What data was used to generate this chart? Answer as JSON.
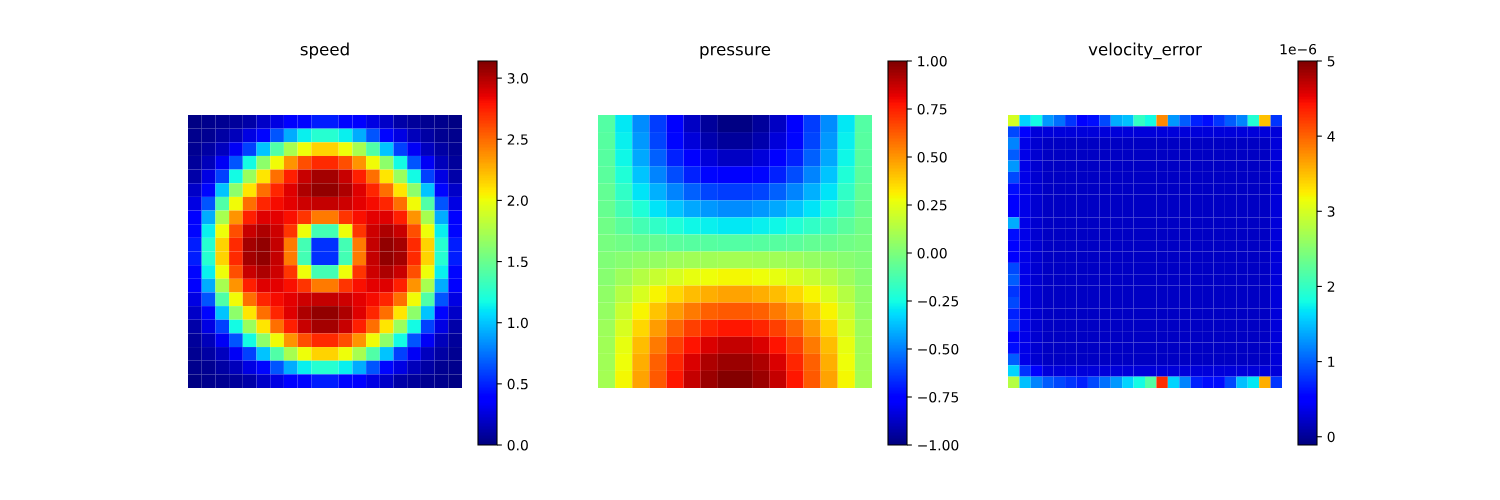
{
  "chart_data": [
    {
      "type": "heatmap",
      "title": "speed",
      "clim": [
        0,
        3.14
      ],
      "cticks": [
        {
          "value": 0,
          "label": "0.0"
        },
        {
          "value": 0.5,
          "label": "0.5"
        },
        {
          "value": 1,
          "label": "1.0"
        },
        {
          "value": 1.5,
          "label": "1.5"
        },
        {
          "value": 2,
          "label": "2.0"
        },
        {
          "value": 2.5,
          "label": "2.5"
        },
        {
          "value": 3,
          "label": "3.0"
        }
      ],
      "categories": [
        null,
        null,
        null,
        null,
        null,
        null,
        null,
        null,
        null,
        null,
        null,
        null,
        null,
        null,
        null,
        null,
        null,
        null,
        null,
        null
      ],
      "y_categories": [
        null,
        null,
        null,
        null,
        null,
        null,
        null,
        null,
        null,
        null,
        null,
        null,
        null,
        null,
        null,
        null,
        null,
        null,
        null,
        null
      ],
      "cells": [
        [
          0.02,
          0.04,
          0.06,
          0.08,
          0.12,
          0.2,
          0.27,
          0.35,
          0.41,
          0.48,
          0.48,
          0.41,
          0.35,
          0.27,
          0.2,
          0.12,
          0.08,
          0.06,
          0.04,
          0.02
        ],
        [
          0.04,
          0.06,
          0.1,
          0.16,
          0.27,
          0.41,
          0.66,
          0.93,
          1.13,
          1.24,
          1.24,
          1.13,
          0.93,
          0.66,
          0.41,
          0.27,
          0.16,
          0.1,
          0.06,
          0.04
        ],
        [
          0.06,
          0.1,
          0.18,
          0.32,
          0.6,
          1.0,
          1.4,
          1.73,
          2.0,
          2.15,
          2.15,
          2.0,
          1.73,
          1.4,
          1.0,
          0.6,
          0.32,
          0.18,
          0.1,
          0.06
        ],
        [
          0.08,
          0.16,
          0.32,
          0.66,
          1.17,
          1.64,
          2.02,
          2.36,
          2.59,
          2.72,
          2.72,
          2.59,
          2.36,
          2.02,
          1.64,
          1.17,
          0.66,
          0.32,
          0.16,
          0.08
        ],
        [
          0.12,
          0.27,
          0.6,
          1.17,
          1.69,
          2.09,
          2.48,
          2.75,
          2.94,
          3.04,
          3.04,
          2.94,
          2.75,
          2.48,
          2.09,
          1.69,
          1.17,
          0.6,
          0.27,
          0.12
        ],
        [
          0.2,
          0.41,
          1.0,
          1.64,
          2.09,
          2.48,
          2.73,
          2.88,
          3.01,
          3.09,
          3.09,
          3.01,
          2.88,
          2.73,
          2.48,
          2.09,
          1.64,
          1.0,
          0.41,
          0.2
        ],
        [
          0.27,
          0.66,
          1.4,
          2.02,
          2.48,
          2.73,
          2.81,
          2.87,
          2.92,
          2.95,
          2.95,
          2.92,
          2.87,
          2.81,
          2.73,
          2.48,
          2.02,
          1.4,
          0.66,
          0.27
        ],
        [
          0.35,
          0.93,
          1.73,
          2.36,
          2.75,
          2.88,
          2.87,
          2.8,
          2.68,
          2.45,
          2.45,
          2.68,
          2.8,
          2.87,
          2.88,
          2.75,
          2.36,
          1.73,
          0.93,
          0.35
        ],
        [
          0.41,
          1.13,
          2.0,
          2.59,
          2.94,
          3.01,
          2.92,
          2.68,
          2.0,
          1.35,
          1.35,
          2.0,
          2.68,
          2.92,
          3.01,
          2.94,
          2.59,
          2.0,
          1.13,
          0.41
        ],
        [
          0.48,
          1.24,
          2.15,
          2.72,
          3.04,
          3.09,
          2.95,
          2.45,
          1.35,
          0.55,
          0.55,
          1.35,
          2.45,
          2.95,
          3.09,
          3.04,
          2.72,
          2.15,
          1.24,
          0.48
        ],
        [
          0.48,
          1.24,
          2.15,
          2.72,
          3.04,
          3.09,
          2.95,
          2.45,
          1.35,
          0.55,
          0.55,
          1.35,
          2.45,
          2.95,
          3.09,
          3.04,
          2.72,
          2.15,
          1.24,
          0.48
        ],
        [
          0.41,
          1.13,
          2.0,
          2.59,
          2.94,
          3.01,
          2.92,
          2.68,
          2.0,
          1.35,
          1.35,
          2.0,
          2.68,
          2.92,
          3.01,
          2.94,
          2.59,
          2.0,
          1.13,
          0.41
        ],
        [
          0.35,
          0.93,
          1.73,
          2.36,
          2.75,
          2.88,
          2.87,
          2.8,
          2.68,
          2.45,
          2.45,
          2.68,
          2.8,
          2.87,
          2.88,
          2.75,
          2.36,
          1.73,
          0.93,
          0.35
        ],
        [
          0.27,
          0.66,
          1.4,
          2.02,
          2.48,
          2.73,
          2.81,
          2.87,
          2.92,
          2.95,
          2.95,
          2.92,
          2.87,
          2.81,
          2.73,
          2.48,
          2.02,
          1.4,
          0.66,
          0.27
        ],
        [
          0.2,
          0.41,
          1.0,
          1.64,
          2.09,
          2.48,
          2.73,
          2.88,
          3.01,
          3.09,
          3.09,
          3.01,
          2.88,
          2.73,
          2.48,
          2.09,
          1.64,
          1.0,
          0.41,
          0.2
        ],
        [
          0.12,
          0.27,
          0.6,
          1.17,
          1.69,
          2.09,
          2.48,
          2.75,
          2.94,
          3.04,
          3.04,
          2.94,
          2.75,
          2.48,
          2.09,
          1.69,
          1.17,
          0.6,
          0.27,
          0.12
        ],
        [
          0.08,
          0.16,
          0.32,
          0.66,
          1.17,
          1.64,
          2.02,
          2.36,
          2.59,
          2.72,
          2.72,
          2.59,
          2.36,
          2.02,
          1.64,
          1.17,
          0.66,
          0.32,
          0.16,
          0.08
        ],
        [
          0.06,
          0.1,
          0.18,
          0.32,
          0.6,
          1.0,
          1.4,
          1.73,
          2.0,
          2.15,
          2.15,
          2.0,
          1.73,
          1.4,
          1.0,
          0.6,
          0.32,
          0.18,
          0.1,
          0.06
        ],
        [
          0.04,
          0.06,
          0.1,
          0.16,
          0.27,
          0.41,
          0.66,
          0.93,
          1.13,
          1.24,
          1.24,
          1.13,
          0.93,
          0.66,
          0.41,
          0.27,
          0.16,
          0.1,
          0.06,
          0.04
        ],
        [
          0.02,
          0.04,
          0.06,
          0.08,
          0.12,
          0.2,
          0.27,
          0.35,
          0.41,
          0.48,
          0.48,
          0.41,
          0.35,
          0.27,
          0.2,
          0.12,
          0.08,
          0.06,
          0.04,
          0.02
        ]
      ]
    },
    {
      "type": "heatmap",
      "title": "pressure",
      "clim": [
        -1,
        1
      ],
      "cticks": [
        {
          "value": -1,
          "label": "−1.00"
        },
        {
          "value": -0.75,
          "label": "−0.75"
        },
        {
          "value": -0.5,
          "label": "−0.50"
        },
        {
          "value": -0.25,
          "label": "−0.25"
        },
        {
          "value": 0,
          "label": "0.00"
        },
        {
          "value": 0.25,
          "label": "0.25"
        },
        {
          "value": 0.5,
          "label": "0.50"
        },
        {
          "value": 0.75,
          "label": "0.75"
        },
        {
          "value": 1,
          "label": "1.00"
        }
      ],
      "categories": [
        null,
        null,
        null,
        null,
        null,
        null,
        null,
        null,
        null,
        null,
        null,
        null,
        null,
        null,
        null,
        null
      ],
      "y_categories": [
        null,
        null,
        null,
        null,
        null,
        null,
        null,
        null,
        null,
        null,
        null,
        null,
        null,
        null,
        null,
        null
      ],
      "cells": [
        [
          -0.1,
          -0.29,
          -0.47,
          -0.63,
          -0.77,
          -0.88,
          -0.95,
          -0.99,
          -0.99,
          -0.95,
          -0.88,
          -0.77,
          -0.63,
          -0.47,
          -0.29,
          -0.1
        ],
        [
          -0.09,
          -0.28,
          -0.45,
          -0.61,
          -0.74,
          -0.84,
          -0.92,
          -0.95,
          -0.95,
          -0.92,
          -0.84,
          -0.74,
          -0.61,
          -0.45,
          -0.28,
          -0.09
        ],
        [
          -0.09,
          -0.26,
          -0.42,
          -0.56,
          -0.68,
          -0.78,
          -0.84,
          -0.88,
          -0.88,
          -0.84,
          -0.78,
          -0.68,
          -0.56,
          -0.42,
          -0.26,
          -0.09
        ],
        [
          -0.08,
          -0.22,
          -0.36,
          -0.49,
          -0.6,
          -0.68,
          -0.74,
          -0.77,
          -0.77,
          -0.74,
          -0.68,
          -0.6,
          -0.49,
          -0.36,
          -0.22,
          -0.08
        ],
        [
          -0.06,
          -0.18,
          -0.3,
          -0.4,
          -0.49,
          -0.56,
          -0.61,
          -0.63,
          -0.63,
          -0.61,
          -0.56,
          -0.49,
          -0.4,
          -0.3,
          -0.18,
          -0.06
        ],
        [
          -0.05,
          -0.14,
          -0.22,
          -0.3,
          -0.36,
          -0.42,
          -0.45,
          -0.47,
          -0.47,
          -0.45,
          -0.42,
          -0.36,
          -0.3,
          -0.22,
          -0.14,
          -0.05
        ],
        [
          -0.03,
          -0.08,
          -0.14,
          -0.18,
          -0.22,
          -0.26,
          -0.28,
          -0.29,
          -0.29,
          -0.28,
          -0.26,
          -0.22,
          -0.18,
          -0.14,
          -0.08,
          -0.03
        ],
        [
          -0.01,
          -0.03,
          -0.05,
          -0.06,
          -0.08,
          -0.09,
          -0.09,
          -0.1,
          -0.1,
          -0.09,
          -0.09,
          -0.08,
          -0.06,
          -0.05,
          -0.03,
          -0.01
        ],
        [
          0.01,
          0.03,
          0.05,
          0.06,
          0.08,
          0.09,
          0.09,
          0.1,
          0.1,
          0.09,
          0.09,
          0.08,
          0.06,
          0.05,
          0.03,
          0.01
        ],
        [
          0.03,
          0.08,
          0.14,
          0.18,
          0.22,
          0.26,
          0.28,
          0.29,
          0.29,
          0.28,
          0.26,
          0.22,
          0.18,
          0.14,
          0.08,
          0.03
        ],
        [
          0.05,
          0.14,
          0.22,
          0.3,
          0.36,
          0.42,
          0.45,
          0.47,
          0.47,
          0.45,
          0.42,
          0.36,
          0.3,
          0.22,
          0.14,
          0.05
        ],
        [
          0.06,
          0.18,
          0.3,
          0.4,
          0.49,
          0.56,
          0.61,
          0.63,
          0.63,
          0.61,
          0.56,
          0.49,
          0.4,
          0.3,
          0.18,
          0.06
        ],
        [
          0.08,
          0.22,
          0.36,
          0.49,
          0.6,
          0.68,
          0.74,
          0.77,
          0.77,
          0.74,
          0.68,
          0.6,
          0.49,
          0.36,
          0.22,
          0.08
        ],
        [
          0.09,
          0.26,
          0.42,
          0.56,
          0.68,
          0.78,
          0.84,
          0.88,
          0.88,
          0.84,
          0.78,
          0.68,
          0.56,
          0.42,
          0.26,
          0.09
        ],
        [
          0.09,
          0.28,
          0.45,
          0.61,
          0.74,
          0.84,
          0.92,
          0.95,
          0.95,
          0.92,
          0.84,
          0.74,
          0.61,
          0.45,
          0.28,
          0.09
        ],
        [
          0.1,
          0.29,
          0.47,
          0.63,
          0.77,
          0.88,
          0.95,
          0.99,
          0.99,
          0.95,
          0.88,
          0.77,
          0.63,
          0.47,
          0.29,
          0.1
        ]
      ]
    },
    {
      "type": "heatmap",
      "title": "velocity_error",
      "clim": [
        -0.11,
        5
      ],
      "cticks": [
        0,
        1,
        2,
        3,
        4,
        5
      ],
      "annotations": [
        "1e−6"
      ],
      "categories": [
        null,
        null,
        null,
        null,
        null,
        null,
        null,
        null,
        null,
        null,
        null,
        null,
        null,
        null,
        null,
        null,
        null,
        null,
        null,
        null,
        null,
        null,
        null,
        null
      ],
      "y_categories": [
        null,
        null,
        null,
        null,
        null,
        null,
        null,
        null,
        null,
        null,
        null,
        null,
        null,
        null,
        null,
        null,
        null,
        null,
        null,
        null,
        null,
        null,
        null,
        null
      ],
      "cells": [
        [
          3.0,
          1.6,
          1.8,
          1.3,
          1.1,
          0.8,
          0.5,
          0.6,
          0.9,
          1.4,
          1.5,
          2.0,
          1.8,
          3.8,
          1.3,
          1.0,
          0.7,
          0.6,
          0.8,
          1.0,
          1.2,
          1.9,
          3.5,
          0.8
        ],
        [
          0.9,
          0.5,
          0.3,
          0.3,
          0.3,
          0.3,
          0.3,
          0.3,
          0.3,
          0.3,
          0.3,
          0.3,
          0.3,
          0.3,
          0.3,
          0.3,
          0.3,
          0.3,
          0.3,
          0.3,
          0.3,
          0.3,
          0.3,
          0.3
        ],
        [
          1.2,
          0.35,
          0.25,
          0.2,
          0.2,
          0.2,
          0.2,
          0.2,
          0.2,
          0.2,
          0.2,
          0.2,
          0.2,
          0.2,
          0.2,
          0.2,
          0.2,
          0.2,
          0.2,
          0.2,
          0.2,
          0.2,
          0.2,
          0.3
        ],
        [
          1.0,
          0.35,
          0.25,
          0.2,
          0.2,
          0.2,
          0.2,
          0.2,
          0.2,
          0.2,
          0.2,
          0.2,
          0.2,
          0.2,
          0.2,
          0.2,
          0.2,
          0.2,
          0.2,
          0.2,
          0.2,
          0.2,
          0.2,
          0.3
        ],
        [
          1.3,
          0.35,
          0.25,
          0.2,
          0.2,
          0.2,
          0.2,
          0.2,
          0.2,
          0.2,
          0.2,
          0.2,
          0.2,
          0.2,
          0.2,
          0.2,
          0.2,
          0.2,
          0.2,
          0.2,
          0.2,
          0.2,
          0.2,
          0.3
        ],
        [
          0.9,
          0.35,
          0.25,
          0.2,
          0.2,
          0.2,
          0.2,
          0.2,
          0.2,
          0.2,
          0.2,
          0.2,
          0.2,
          0.2,
          0.2,
          0.2,
          0.2,
          0.2,
          0.2,
          0.2,
          0.2,
          0.2,
          0.2,
          0.3
        ],
        [
          0.6,
          0.35,
          0.25,
          0.2,
          0.2,
          0.2,
          0.2,
          0.2,
          0.2,
          0.2,
          0.2,
          0.2,
          0.2,
          0.2,
          0.2,
          0.2,
          0.2,
          0.2,
          0.2,
          0.2,
          0.2,
          0.2,
          0.2,
          0.3
        ],
        [
          0.5,
          0.35,
          0.25,
          0.2,
          0.2,
          0.2,
          0.2,
          0.2,
          0.2,
          0.2,
          0.2,
          0.2,
          0.2,
          0.2,
          0.2,
          0.2,
          0.2,
          0.2,
          0.2,
          0.2,
          0.2,
          0.2,
          0.2,
          0.3
        ],
        [
          0.5,
          0.35,
          0.25,
          0.2,
          0.2,
          0.2,
          0.2,
          0.2,
          0.2,
          0.2,
          0.2,
          0.2,
          0.2,
          0.2,
          0.2,
          0.2,
          0.2,
          0.2,
          0.2,
          0.2,
          0.2,
          0.2,
          0.2,
          0.3
        ],
        [
          1.4,
          0.35,
          0.25,
          0.2,
          0.2,
          0.2,
          0.2,
          0.2,
          0.2,
          0.2,
          0.2,
          0.2,
          0.2,
          0.2,
          0.2,
          0.2,
          0.2,
          0.2,
          0.2,
          0.2,
          0.2,
          0.2,
          0.2,
          0.3
        ],
        [
          0.6,
          0.35,
          0.25,
          0.2,
          0.2,
          0.2,
          0.2,
          0.2,
          0.2,
          0.2,
          0.2,
          0.2,
          0.2,
          0.2,
          0.2,
          0.2,
          0.2,
          0.2,
          0.2,
          0.2,
          0.2,
          0.2,
          0.2,
          0.3
        ],
        [
          0.5,
          0.35,
          0.25,
          0.2,
          0.2,
          0.2,
          0.2,
          0.2,
          0.2,
          0.2,
          0.2,
          0.2,
          0.2,
          0.2,
          0.2,
          0.2,
          0.2,
          0.2,
          0.2,
          0.2,
          0.2,
          0.2,
          0.2,
          0.3
        ],
        [
          0.5,
          0.35,
          0.25,
          0.2,
          0.2,
          0.2,
          0.2,
          0.2,
          0.2,
          0.2,
          0.2,
          0.2,
          0.2,
          0.2,
          0.2,
          0.2,
          0.2,
          0.2,
          0.2,
          0.2,
          0.2,
          0.2,
          0.2,
          0.3
        ],
        [
          0.9,
          0.35,
          0.25,
          0.2,
          0.2,
          0.2,
          0.2,
          0.2,
          0.2,
          0.2,
          0.2,
          0.2,
          0.2,
          0.2,
          0.2,
          0.2,
          0.2,
          0.2,
          0.2,
          0.2,
          0.2,
          0.2,
          0.2,
          0.3
        ],
        [
          1.0,
          0.35,
          0.25,
          0.2,
          0.2,
          0.2,
          0.2,
          0.2,
          0.2,
          0.2,
          0.2,
          0.2,
          0.2,
          0.2,
          0.2,
          0.2,
          0.2,
          0.2,
          0.2,
          0.2,
          0.2,
          0.2,
          0.2,
          0.3
        ],
        [
          0.8,
          0.35,
          0.25,
          0.2,
          0.2,
          0.2,
          0.2,
          0.2,
          0.2,
          0.2,
          0.2,
          0.2,
          0.2,
          0.2,
          0.2,
          0.2,
          0.2,
          0.2,
          0.2,
          0.2,
          0.2,
          0.2,
          0.2,
          0.3
        ],
        [
          0.9,
          0.35,
          0.25,
          0.2,
          0.2,
          0.2,
          0.2,
          0.2,
          0.2,
          0.2,
          0.2,
          0.2,
          0.2,
          0.2,
          0.2,
          0.2,
          0.2,
          0.2,
          0.2,
          0.2,
          0.2,
          0.2,
          0.2,
          0.3
        ],
        [
          0.7,
          0.35,
          0.25,
          0.2,
          0.2,
          0.2,
          0.2,
          0.2,
          0.2,
          0.2,
          0.2,
          0.2,
          0.2,
          0.2,
          0.2,
          0.2,
          0.2,
          0.2,
          0.2,
          0.2,
          0.2,
          0.2,
          0.2,
          0.3
        ],
        [
          0.8,
          0.35,
          0.25,
          0.2,
          0.2,
          0.2,
          0.2,
          0.2,
          0.2,
          0.2,
          0.2,
          0.2,
          0.2,
          0.2,
          0.2,
          0.2,
          0.2,
          0.2,
          0.2,
          0.2,
          0.2,
          0.2,
          0.2,
          0.3
        ],
        [
          0.5,
          0.35,
          0.25,
          0.2,
          0.2,
          0.2,
          0.2,
          0.2,
          0.2,
          0.2,
          0.2,
          0.2,
          0.2,
          0.2,
          0.2,
          0.2,
          0.2,
          0.2,
          0.2,
          0.2,
          0.2,
          0.2,
          0.2,
          0.3
        ],
        [
          0.6,
          0.35,
          0.25,
          0.2,
          0.2,
          0.2,
          0.2,
          0.2,
          0.2,
          0.2,
          0.2,
          0.2,
          0.2,
          0.2,
          0.2,
          0.2,
          0.2,
          0.2,
          0.2,
          0.2,
          0.2,
          0.2,
          0.2,
          0.3
        ],
        [
          1.0,
          0.35,
          0.25,
          0.2,
          0.2,
          0.2,
          0.2,
          0.2,
          0.2,
          0.2,
          0.2,
          0.2,
          0.2,
          0.2,
          0.2,
          0.2,
          0.2,
          0.2,
          0.2,
          0.2,
          0.2,
          0.2,
          0.2,
          0.3
        ],
        [
          1.6,
          0.8,
          0.5,
          0.3,
          0.3,
          0.3,
          0.3,
          0.3,
          0.3,
          0.3,
          0.3,
          0.3,
          0.3,
          0.3,
          0.3,
          0.3,
          0.3,
          0.3,
          0.3,
          0.3,
          0.3,
          0.3,
          0.3,
          0.3
        ],
        [
          2.8,
          1.5,
          1.2,
          1.0,
          0.9,
          0.8,
          0.7,
          0.9,
          1.1,
          1.3,
          1.6,
          1.8,
          2.2,
          4.3,
          1.6,
          1.2,
          0.7,
          0.6,
          0.6,
          0.9,
          1.5,
          1.7,
          3.6,
          0.8
        ]
      ]
    }
  ]
}
